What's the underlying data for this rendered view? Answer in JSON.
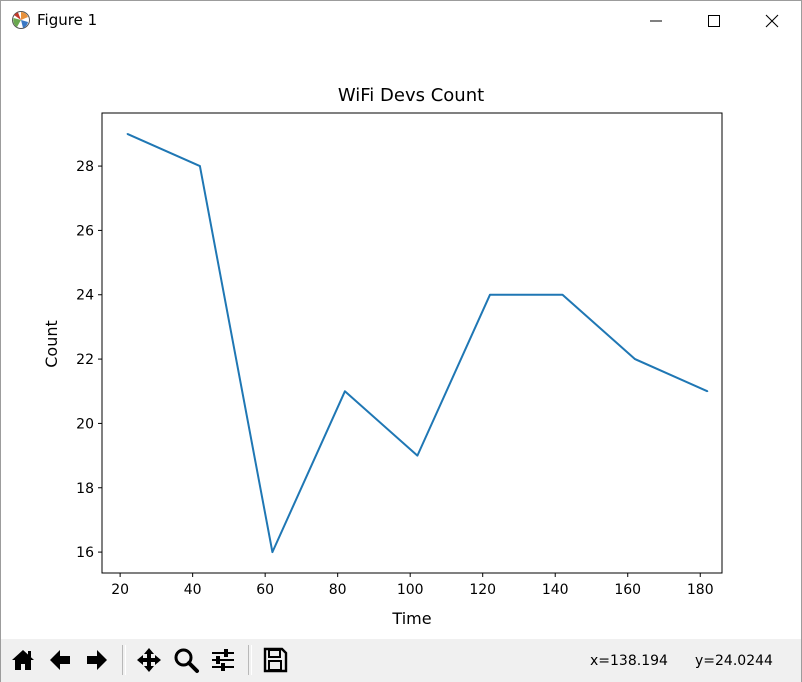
{
  "window": {
    "title": "Figure 1"
  },
  "icons": {
    "app": "matplotlib-icon",
    "minimize": "minimize-icon",
    "maximize": "maximize-icon",
    "close": "close-icon"
  },
  "toolbar": {
    "buttons": [
      {
        "name": "home-button",
        "icon": "home-icon"
      },
      {
        "name": "back-button",
        "icon": "back-arrow-icon"
      },
      {
        "name": "forward-button",
        "icon": "forward-arrow-icon"
      },
      {
        "name": "pan-button",
        "icon": "move-icon"
      },
      {
        "name": "zoom-button",
        "icon": "magnifier-icon"
      },
      {
        "name": "configure-subplots-button",
        "icon": "sliders-icon"
      },
      {
        "name": "save-button",
        "icon": "floppy-disk-icon"
      }
    ],
    "coords": {
      "x": "x=138.194",
      "y": "y=24.0244"
    }
  },
  "chart_data": {
    "type": "line",
    "title": "WiFi Devs Count",
    "xlabel": "Time",
    "ylabel": "Count",
    "xlim": [
      15,
      186
    ],
    "ylim": [
      15.35,
      29.65
    ],
    "xticks": [
      20,
      40,
      60,
      80,
      100,
      120,
      140,
      160,
      180
    ],
    "yticks": [
      16,
      18,
      20,
      22,
      24,
      26,
      28
    ],
    "series": [
      {
        "color": "#1f77b4",
        "x": [
          22,
          42,
          62,
          82,
          102,
          122,
          142,
          162,
          182
        ],
        "y": [
          29,
          28,
          16,
          21,
          19,
          24,
          24,
          22,
          21
        ]
      }
    ],
    "grid": false,
    "legend": "none"
  }
}
